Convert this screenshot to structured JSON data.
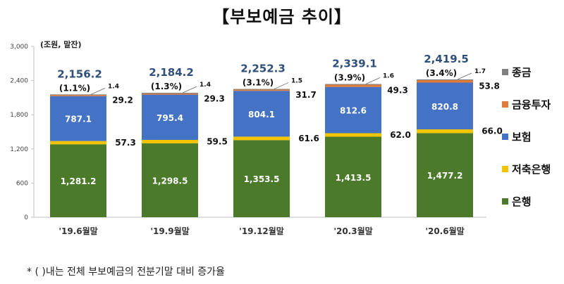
{
  "title": "【부보예금 추이】",
  "footnote": "* (    )내는 전체 부보예금의 전분기말 대비 증가율",
  "chart_data": {
    "type": "bar",
    "stacked": true,
    "unit_label": "(조원, 말잔)",
    "categories": [
      "'19.6월말",
      "'19.9월말",
      "'19.12월말",
      "'20.3월말",
      "'20.6월말"
    ],
    "ylim": [
      0,
      3000
    ],
    "yticks": [
      0,
      600,
      1200,
      1800,
      2400,
      3000
    ],
    "ytick_labels": [
      "0",
      "600",
      "1,200",
      "1,800",
      "2,400",
      "3,000"
    ],
    "grid": false,
    "legend_position": "right",
    "series": [
      {
        "name": "은행",
        "color": "#4a7a2a",
        "values": [
          1281.2,
          1298.5,
          1353.5,
          1413.5,
          1477.2
        ],
        "labels": [
          "1,281.2",
          "1,298.5",
          "1,353.5",
          "1,413.5",
          "1,477.2"
        ]
      },
      {
        "name": "저축은행",
        "color": "#f5c400",
        "values": [
          57.3,
          59.5,
          61.6,
          62.0,
          66.0
        ],
        "labels": [
          "57.3",
          "59.5",
          "61.6",
          "62.0",
          "66.0"
        ]
      },
      {
        "name": "보험",
        "color": "#4472c4",
        "values": [
          787.1,
          795.4,
          804.1,
          812.6,
          820.8
        ],
        "labels": [
          "787.1",
          "795.4",
          "804.1",
          "812.6",
          "820.8"
        ]
      },
      {
        "name": "금융투자",
        "color": "#e07b39",
        "values": [
          29.2,
          29.3,
          31.7,
          49.3,
          53.8
        ],
        "labels": [
          "29.2",
          "29.3",
          "31.7",
          "49.3",
          "53.8"
        ]
      },
      {
        "name": "종금",
        "color": "#808080",
        "values": [
          1.4,
          1.4,
          1.5,
          1.6,
          1.7
        ],
        "labels": [
          "1.4",
          "1.4",
          "1.5",
          "1.6",
          "1.7"
        ]
      }
    ],
    "totals": [
      "2,156.2",
      "2,184.2",
      "2,252.3",
      "2,339.1",
      "2,419.5"
    ],
    "growth": [
      "(1.1%)",
      "(1.3%)",
      "(3.1%)",
      "(3.9%)",
      "(3.4%)"
    ]
  }
}
